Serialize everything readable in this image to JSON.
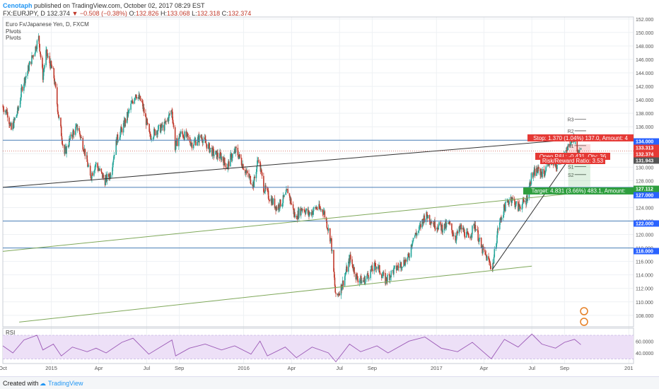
{
  "header": {
    "author": "Cenotaph",
    "published": " published on TradingView.com, October 02, 2017 08:29 EST",
    "symbol": "FX:EURJPY, D",
    "last": "132.374",
    "arrow": "▼",
    "change": "−0.508 (−0.38%)",
    "o_label": "O:",
    "o": "132.826",
    "h_label": "H:",
    "h": "133.068",
    "l_label": "L:",
    "l": "132.318",
    "c_label": "C:",
    "c": "132.374"
  },
  "overlay": {
    "title": "Euro Fx/Japanese Yen, D, FXCM",
    "ind1": "Pivots",
    "ind2": "Pivots"
  },
  "footer": {
    "created_with": "Created with",
    "brand": "TradingView"
  },
  "colors": {
    "up": "#26a69a",
    "down": "#c0392b",
    "hline": "#4a7fb8",
    "green_line": "#7fa85a",
    "rsi": "#9b59b6",
    "rsi_band": "#ede0f7",
    "stop_bg": "#e53935",
    "target_bg": "#2e9e3e",
    "price_tag": "#2962ff"
  },
  "chart_data": {
    "type": "candlestick",
    "main": {
      "ylim": [
        106.3,
        152.3
      ],
      "y_ticks": [
        108,
        110,
        112,
        114,
        116,
        118,
        120,
        122,
        124,
        126,
        128,
        130,
        132,
        134,
        136,
        138,
        140,
        142,
        144,
        146,
        148,
        150,
        152
      ],
      "y_tick_labels": [
        "108.000",
        "110.000",
        "112.000",
        "114.000",
        "116.000",
        "118.000",
        "120.000",
        "122.000",
        "124.000",
        "126.000",
        "128.000",
        "130.000",
        "132.000",
        "134.000",
        "136.000",
        "138.000",
        "140.000",
        "142.000",
        "144.000",
        "146.000",
        "148.000",
        "150.000",
        "152.000"
      ],
      "x_range": [
        "2014-10-01",
        "2018-01-10"
      ],
      "x_ticks": [
        {
          "date": "2014-10-01",
          "label": "Oct"
        },
        {
          "date": "2015-01-01",
          "label": "2015"
        },
        {
          "date": "2015-04-01",
          "label": "Apr"
        },
        {
          "date": "2015-07-01",
          "label": "Jul"
        },
        {
          "date": "2015-09-01",
          "label": "Sep"
        },
        {
          "date": "2016-01-01",
          "label": "2016"
        },
        {
          "date": "2016-04-01",
          "label": "Apr"
        },
        {
          "date": "2016-07-01",
          "label": "Jul"
        },
        {
          "date": "2016-09-01",
          "label": "Sep"
        },
        {
          "date": "2017-01-01",
          "label": "2017"
        },
        {
          "date": "2017-04-01",
          "label": "Apr"
        },
        {
          "date": "2017-07-01",
          "label": "Jul"
        },
        {
          "date": "2017-09-01",
          "label": "Sep"
        },
        {
          "date": "2018-01-01",
          "label": "201"
        }
      ],
      "path_points": [
        [
          "2014-10-01",
          139.0
        ],
        [
          "2014-10-10",
          138.0
        ],
        [
          "2014-10-17",
          135.5
        ],
        [
          "2014-10-30",
          138.5
        ],
        [
          "2014-11-07",
          142.0
        ],
        [
          "2014-11-20",
          145.0
        ],
        [
          "2014-12-01",
          147.5
        ],
        [
          "2014-12-08",
          149.2
        ],
        [
          "2014-12-16",
          143.5
        ],
        [
          "2014-12-22",
          147.0
        ],
        [
          "2015-01-05",
          144.0
        ],
        [
          "2015-01-15",
          137.5
        ],
        [
          "2015-01-26",
          132.0
        ],
        [
          "2015-02-10",
          135.0
        ],
        [
          "2015-02-20",
          136.0
        ],
        [
          "2015-03-05",
          132.5
        ],
        [
          "2015-03-16",
          128.5
        ],
        [
          "2015-03-26",
          130.5
        ],
        [
          "2015-04-13",
          128.0
        ],
        [
          "2015-04-23",
          129.0
        ],
        [
          "2015-05-05",
          134.0
        ],
        [
          "2015-05-20",
          136.5
        ],
        [
          "2015-06-03",
          139.5
        ],
        [
          "2015-06-10",
          141.0
        ],
        [
          "2015-06-22",
          139.5
        ],
        [
          "2015-07-07",
          134.5
        ],
        [
          "2015-07-20",
          135.5
        ],
        [
          "2015-08-03",
          136.0
        ],
        [
          "2015-08-18",
          138.5
        ],
        [
          "2015-08-24",
          133.0
        ],
        [
          "2015-09-03",
          135.0
        ],
        [
          "2015-09-15",
          134.5
        ],
        [
          "2015-09-25",
          133.5
        ],
        [
          "2015-10-13",
          134.5
        ],
        [
          "2015-10-26",
          133.0
        ],
        [
          "2015-11-05",
          132.0
        ],
        [
          "2015-11-20",
          131.5
        ],
        [
          "2015-12-01",
          130.0
        ],
        [
          "2015-12-08",
          131.5
        ],
        [
          "2015-12-18",
          132.5
        ],
        [
          "2016-01-07",
          129.0
        ],
        [
          "2016-01-20",
          127.5
        ],
        [
          "2016-01-29",
          131.5
        ],
        [
          "2016-02-08",
          127.0
        ],
        [
          "2016-02-19",
          125.5
        ],
        [
          "2016-03-04",
          124.0
        ],
        [
          "2016-03-15",
          125.0
        ],
        [
          "2016-03-25",
          126.5
        ],
        [
          "2016-04-08",
          122.5
        ],
        [
          "2016-04-22",
          124.0
        ],
        [
          "2016-05-04",
          123.0
        ],
        [
          "2016-05-18",
          124.0
        ],
        [
          "2016-06-01",
          123.5
        ],
        [
          "2016-06-15",
          119.0
        ],
        [
          "2016-06-24",
          110.5
        ],
        [
          "2016-07-06",
          112.5
        ],
        [
          "2016-07-21",
          116.5
        ],
        [
          "2016-08-03",
          113.5
        ],
        [
          "2016-08-15",
          113.0
        ],
        [
          "2016-08-29",
          114.5
        ],
        [
          "2016-09-09",
          115.5
        ],
        [
          "2016-09-26",
          113.2
        ],
        [
          "2016-10-10",
          114.5
        ],
        [
          "2016-10-24",
          115.5
        ],
        [
          "2016-11-09",
          116.5
        ],
        [
          "2016-11-17",
          119.5
        ],
        [
          "2016-11-28",
          120.5
        ],
        [
          "2016-12-08",
          122.5
        ],
        [
          "2016-12-15",
          122.8
        ],
        [
          "2016-12-28",
          121.5
        ],
        [
          "2017-01-12",
          121.0
        ],
        [
          "2017-01-25",
          121.5
        ],
        [
          "2017-02-06",
          119.5
        ],
        [
          "2017-02-16",
          121.0
        ],
        [
          "2017-03-03",
          119.5
        ],
        [
          "2017-03-15",
          121.5
        ],
        [
          "2017-03-27",
          118.0
        ],
        [
          "2017-04-17",
          115.0
        ],
        [
          "2017-04-28",
          121.0
        ],
        [
          "2017-05-10",
          124.0
        ],
        [
          "2017-05-22",
          125.5
        ],
        [
          "2017-06-05",
          124.0
        ],
        [
          "2017-06-20",
          125.0
        ],
        [
          "2017-06-30",
          128.5
        ],
        [
          "2017-07-10",
          129.5
        ],
        [
          "2017-07-24",
          129.0
        ],
        [
          "2017-08-02",
          131.0
        ],
        [
          "2017-08-16",
          130.0
        ],
        [
          "2017-08-25",
          131.5
        ],
        [
          "2017-09-04",
          132.0
        ],
        [
          "2017-09-12",
          134.0
        ],
        [
          "2017-09-20",
          134.3
        ],
        [
          "2017-09-26",
          131.9
        ],
        [
          "2017-10-02",
          132.37
        ]
      ],
      "horizontal_lines": [
        {
          "price": 134.0,
          "label": "134.000"
        },
        {
          "price": 127.0,
          "label": "127.000"
        },
        {
          "price": 122.0,
          "label": "122.000"
        },
        {
          "price": 118.0,
          "label": "118.000"
        }
      ],
      "trend_lines": [
        {
          "from": [
            "2014-10-01",
            127.0
          ],
          "to": [
            "2017-09-30",
            134.2
          ],
          "color": "dark"
        },
        {
          "from": [
            "2014-10-01",
            117.5
          ],
          "to": [
            "2017-09-30",
            126.2
          ],
          "color": "green"
        },
        {
          "from": [
            "2014-11-01",
            107.0
          ],
          "to": [
            "2017-07-01",
            115.3
          ],
          "color": "green"
        },
        {
          "from": [
            "2017-04-17",
            114.8
          ],
          "to": [
            "2017-09-12",
            131.5
          ],
          "color": "dark"
        }
      ],
      "pivots": [
        {
          "name": "R3",
          "price": 137.1
        },
        {
          "name": "R2",
          "price": 135.4
        },
        {
          "name": "R1",
          "price": 133.2
        },
        {
          "name": "S1",
          "price": 130.1
        },
        {
          "name": "S2",
          "price": 128.9
        }
      ],
      "position": {
        "stop_text": "Stop: 1.370 (1.04%) 137.0, Amount: 4",
        "open_text": "Open P&L: -0.431, Qty: 36",
        "rr_text": "Risk/Reward Ratio: 3.53",
        "target_text": "Target: 4.831 (3.66%) 483.1, Amount: ",
        "entry": 132.0,
        "stop": 133.4,
        "target": 127.1,
        "from": "2017-09-08",
        "to": "2017-10-20"
      },
      "price_tags": [
        {
          "label": "134.000",
          "color": "#2962ff"
        },
        {
          "label": "133.313",
          "color": "#e53935"
        },
        {
          "label": "132.374",
          "color": "#e53935"
        },
        {
          "label": "131.943",
          "color": "#555555"
        },
        {
          "label": "127.112",
          "color": "#2e9e3e"
        },
        {
          "label": "127.000",
          "color": "#2962ff"
        },
        {
          "label": "122.000",
          "color": "#2962ff"
        },
        {
          "label": "118.000",
          "color": "#2962ff"
        }
      ]
    },
    "rsi": {
      "title": "RSI",
      "y_ticks": [
        40,
        60
      ],
      "y_tick_labels": [
        "40.0000",
        "60.0000"
      ],
      "ylim": [
        22,
        82
      ],
      "band": [
        30,
        70
      ],
      "points": [
        [
          "2014-10-01",
          52
        ],
        [
          "2014-10-20",
          40
        ],
        [
          "2014-11-10",
          62
        ],
        [
          "2014-12-05",
          70
        ],
        [
          "2014-12-16",
          45
        ],
        [
          "2015-01-05",
          55
        ],
        [
          "2015-01-20",
          35
        ],
        [
          "2015-02-10",
          50
        ],
        [
          "2015-03-10",
          42
        ],
        [
          "2015-03-27",
          48
        ],
        [
          "2015-04-15",
          40
        ],
        [
          "2015-05-15",
          58
        ],
        [
          "2015-06-05",
          65
        ],
        [
          "2015-07-05",
          38
        ],
        [
          "2015-08-18",
          62
        ],
        [
          "2015-08-25",
          35
        ],
        [
          "2015-09-20",
          48
        ],
        [
          "2015-10-20",
          55
        ],
        [
          "2015-11-20",
          45
        ],
        [
          "2015-12-15",
          52
        ],
        [
          "2016-01-15",
          38
        ],
        [
          "2016-02-01",
          60
        ],
        [
          "2016-02-15",
          35
        ],
        [
          "2016-03-20",
          50
        ],
        [
          "2016-04-10",
          32
        ],
        [
          "2016-05-10",
          50
        ],
        [
          "2016-06-10",
          40
        ],
        [
          "2016-06-24",
          25
        ],
        [
          "2016-07-20",
          55
        ],
        [
          "2016-08-10",
          42
        ],
        [
          "2016-09-10",
          52
        ],
        [
          "2016-10-01",
          40
        ],
        [
          "2016-11-10",
          60
        ],
        [
          "2016-12-10",
          67
        ],
        [
          "2017-01-10",
          48
        ],
        [
          "2017-02-10",
          42
        ],
        [
          "2017-03-10",
          58
        ],
        [
          "2017-04-15",
          30
        ],
        [
          "2017-05-10",
          63
        ],
        [
          "2017-06-05",
          50
        ],
        [
          "2017-07-01",
          72
        ],
        [
          "2017-07-20",
          55
        ],
        [
          "2017-08-15",
          48
        ],
        [
          "2017-09-01",
          58
        ],
        [
          "2017-09-20",
          63
        ],
        [
          "2017-10-02",
          54
        ]
      ]
    }
  }
}
